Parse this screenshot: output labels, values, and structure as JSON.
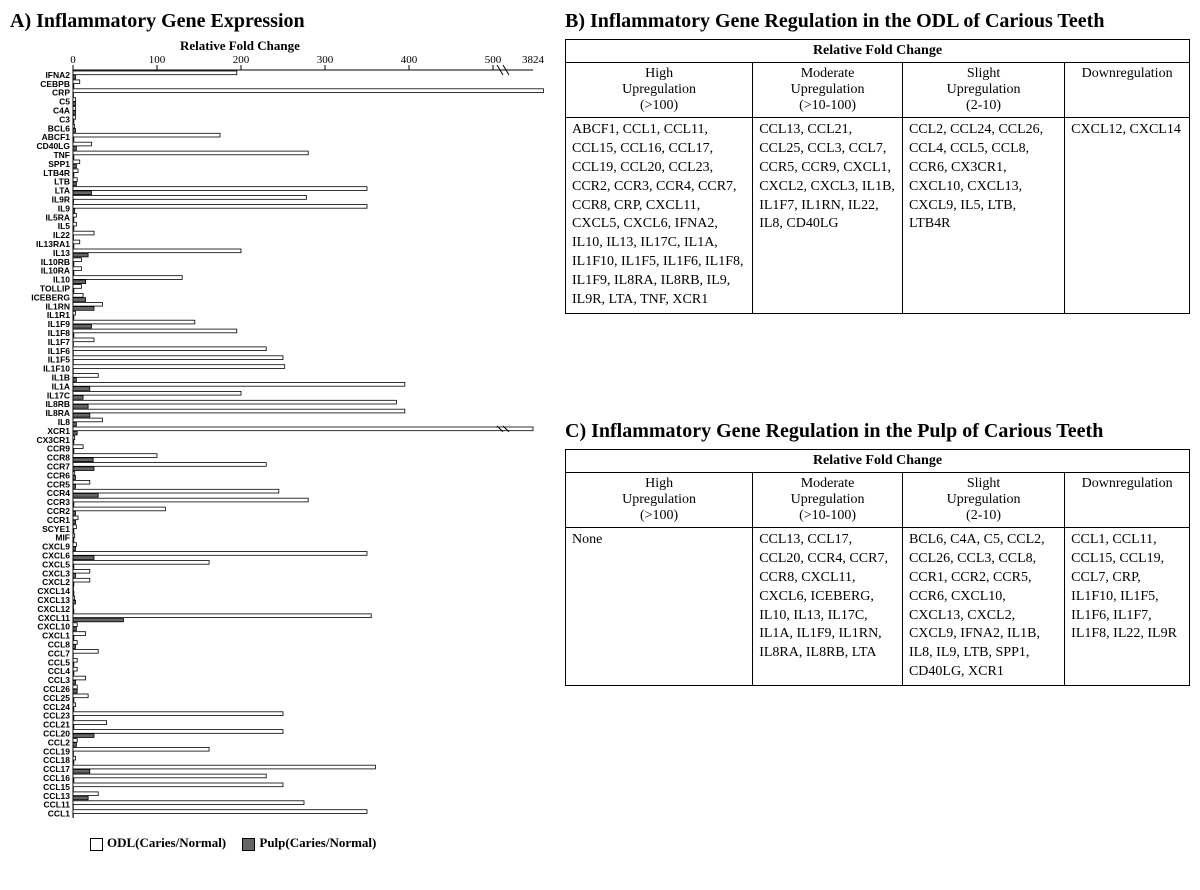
{
  "panel_A": {
    "title": "A) Inflammatory Gene Expression",
    "subtitle": "Relative Fold Change",
    "axis": {
      "ticks": [
        0,
        100,
        200,
        300,
        400,
        500
      ],
      "break_label": "3824"
    },
    "legend": {
      "odl": "ODL(Caries/Normal)",
      "pulp": "Pulp(Caries/Normal)"
    },
    "genes": [
      "IFNA2",
      "CEBPB",
      "CRP",
      "C5",
      "C4A",
      "C3",
      "BCL6",
      "ABCF1",
      "CD40LG",
      "TNF",
      "SPP1",
      "LTB4R",
      "LTB",
      "LTA",
      "IL9R",
      "IL9",
      "IL5RA",
      "IL5",
      "IL22",
      "IL13RA1",
      "IL13",
      "IL10RB",
      "IL10RA",
      "IL10",
      "TOLLIP",
      "ICEBERG",
      "IL1RN",
      "IL1R1",
      "IL1F9",
      "IL1F8",
      "IL1F7",
      "IL1F6",
      "IL1F5",
      "IL1F10",
      "IL1B",
      "IL1A",
      "IL17C",
      "IL8RB",
      "IL8RA",
      "IL8",
      "XCR1",
      "CX3CR1",
      "CCR9",
      "CCR8",
      "CCR7",
      "CCR6",
      "CCR5",
      "CCR4",
      "CCR3",
      "CCR2",
      "CCR1",
      "SCYE1",
      "MIF",
      "CXCL9",
      "CXCL6",
      "CXCL5",
      "CXCL3",
      "CXCL2",
      "CXCL14",
      "CXCL13",
      "CXCL12",
      "CXCL11",
      "CXCL10",
      "CXCL1",
      "CCL8",
      "CCL7",
      "CCL5",
      "CCL4",
      "CCL3",
      "CCL26",
      "CCL25",
      "CCL24",
      "CCL23",
      "CCL21",
      "CCL20",
      "CCL2",
      "CCL19",
      "CCL18",
      "CCL17",
      "CCL16",
      "CCL15",
      "CCL13",
      "CCL11",
      "CCL1"
    ],
    "odl_values": [
      195,
      8,
      560,
      3,
      3,
      3,
      2,
      175,
      22,
      280,
      8,
      6,
      5,
      350,
      278,
      350,
      4,
      4,
      25,
      8,
      200,
      10,
      10,
      130,
      10,
      12,
      35,
      3,
      145,
      195,
      25,
      230,
      250,
      252,
      30,
      395,
      200,
      385,
      395,
      35,
      3824,
      2,
      12,
      100,
      230,
      2,
      20,
      245,
      280,
      110,
      6,
      4,
      2,
      4,
      350,
      162,
      20,
      20,
      0.5,
      2,
      0.5,
      355,
      5,
      15,
      5,
      30,
      5,
      5,
      15,
      5,
      18,
      3,
      250,
      40,
      250,
      5,
      162,
      3,
      360,
      230,
      250,
      30,
      275,
      350
    ],
    "pulp_values": [
      3,
      1,
      0.5,
      3,
      3,
      1,
      3,
      1,
      4,
      1,
      4,
      1,
      4,
      22,
      0.6,
      2,
      1,
      1,
      0.6,
      1,
      18,
      1,
      1,
      15,
      1,
      15,
      25,
      1,
      22,
      1,
      0.4,
      0.3,
      0.3,
      0.3,
      4,
      20,
      12,
      18,
      20,
      4,
      5,
      1,
      1,
      24,
      25,
      3,
      3,
      30,
      1,
      3,
      3,
      1,
      1,
      3,
      25,
      1,
      3,
      1,
      1,
      3,
      1,
      60,
      4,
      1,
      3,
      0.3,
      1,
      1,
      3,
      5,
      1,
      1,
      1,
      1,
      25,
      4,
      0.5,
      1,
      20,
      1,
      0.4,
      18,
      0.3,
      0.3
    ]
  },
  "panel_B": {
    "title": "B) Inflammatory Gene Regulation in the ODL of Carious Teeth",
    "super_header": "Relative Fold Change",
    "columns": [
      {
        "line1": "High",
        "line2": "Upregulation",
        "line3": "(>100)"
      },
      {
        "line1": "Moderate",
        "line2": "Upregulation",
        "line3": "(>10-100)"
      },
      {
        "line1": "Slight",
        "line2": "Upregulation",
        "line3": "(2-10)"
      },
      {
        "line1": "Downregulation",
        "line2": "",
        "line3": ""
      }
    ],
    "cells": [
      "ABCF1, CCL1, CCL11, CCL15, CCL16, CCL17, CCL19, CCL20, CCL23, CCR2, CCR3, CCR4, CCR7, CCR8, CRP, CXCL11, CXCL5, CXCL6, IFNA2, IL10, IL13, IL17C, IL1A, IL1F10, IL1F5, IL1F6, IL1F8, IL1F9, IL8RA, IL8RB, IL9, IL9R, LTA, TNF, XCR1",
      "CCL13, CCL21, CCL25, CCL3, CCL7, CCR5, CCR9, CXCL1, CXCL2, CXCL3, IL1B, IL1F7, IL1RN, IL22, IL8, CD40LG",
      "CCL2, CCL24, CCL26, CCL4, CCL5, CCL8, CCR6, CX3CR1, CXCL10, CXCL13, CXCL9, IL5, LTB, LTB4R",
      "CXCL12, CXCL14"
    ]
  },
  "panel_C": {
    "title": "C) Inflammatory Gene Regulation in the Pulp of Carious Teeth",
    "super_header": "Relative Fold Change",
    "columns": [
      {
        "line1": "High",
        "line2": "Upregulation",
        "line3": "(>100)"
      },
      {
        "line1": "Moderate",
        "line2": "Upregulation",
        "line3": "(>10-100)"
      },
      {
        "line1": "Slight",
        "line2": "Upregulation",
        "line3": "(2-10)"
      },
      {
        "line1": "Downregulation",
        "line2": "",
        "line3": ""
      }
    ],
    "cells": [
      "None",
      "CCL13, CCL17, CCL20, CCR4, CCR7, CCR8, CXCL11, CXCL6, ICEBERG, IL10, IL13, IL17C, IL1A, IL1F9, IL1RN, IL8RA, IL8RB, LTA",
      "BCL6, C4A, C5, CCL2, CCL26, CCL3, CCL8, CCR1, CCR2, CCR5, CCR6, CXCL10, CXCL13, CXCL2, CXCL9, IFNA2, IL1B, IL8, IL9, LTB, SPP1, CD40LG, XCR1",
      "CCL1, CCL11, CCL15, CCL19, CCL7, CRP, IL1F10, IL1F5, IL1F6, IL1F7, IL1F8, IL22, IL9R"
    ]
  },
  "style": {
    "odl_fill": "#ffffff",
    "pulp_fill": "#666666",
    "stroke": "#000000",
    "bg": "#ffffff",
    "label_fontsize": 8.5,
    "tick_fontsize": 11,
    "title_fontsize": 20
  }
}
